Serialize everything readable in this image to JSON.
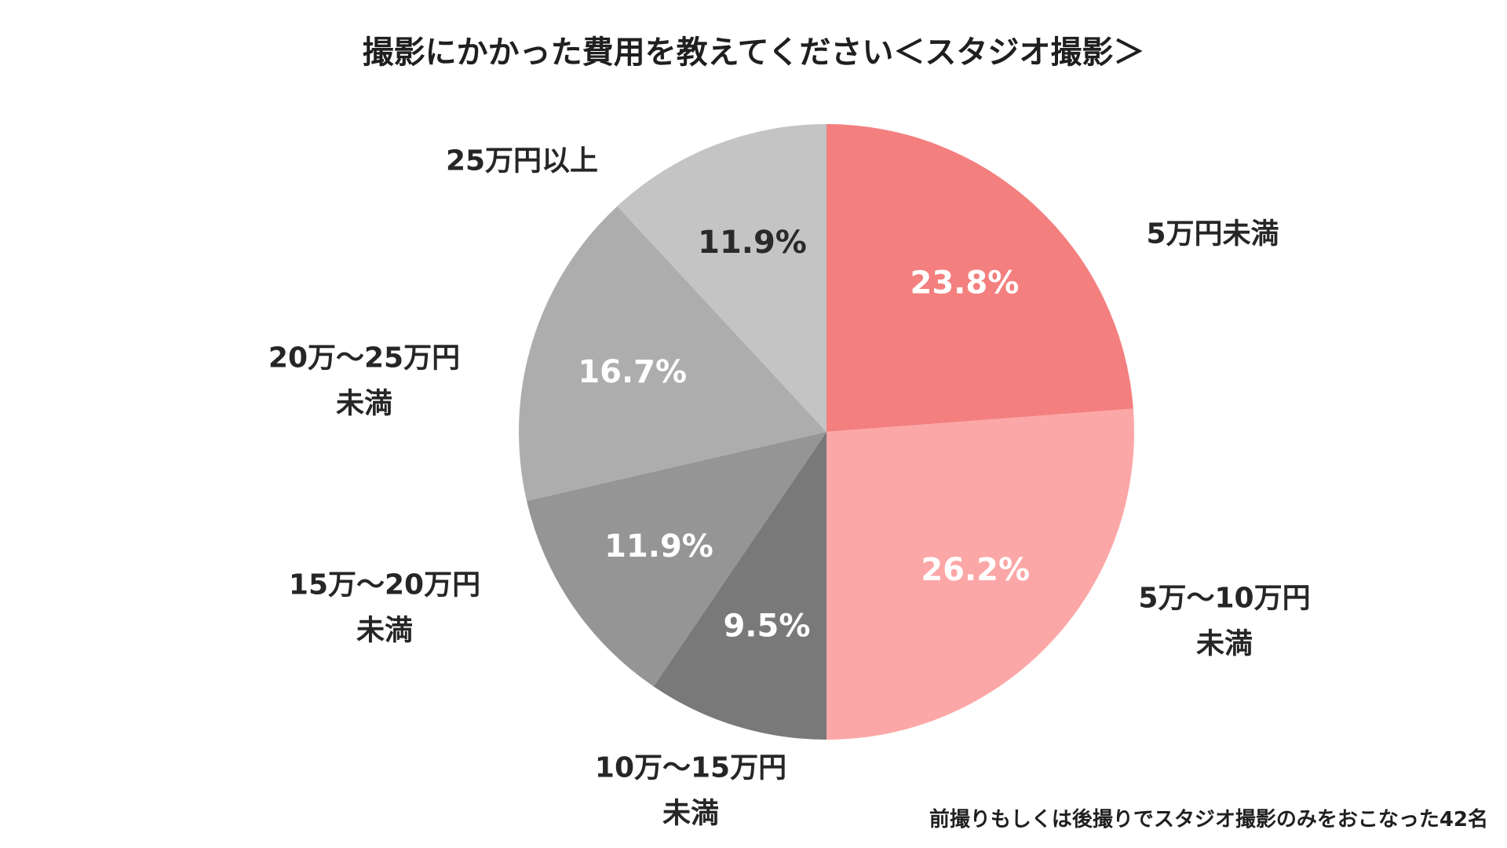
{
  "chart_data": {
    "type": "pie",
    "title": "撮影にかかった費用を教えてください＜スタジオ撮影＞",
    "categories": [
      "5万円未満",
      "5万～10万円未満",
      "10万～15万円未満",
      "15万～20万円未満",
      "20万～25万円未満",
      "25万円以上"
    ],
    "values": [
      23.8,
      26.2,
      9.5,
      11.9,
      16.7,
      11.9
    ],
    "value_labels": [
      "23.8%",
      "26.2%",
      "9.5%",
      "11.9%",
      "16.7%",
      "11.9%"
    ],
    "category_label_lines": [
      [
        "5万円未満"
      ],
      [
        "5万～10万円",
        "未満"
      ],
      [
        "10万～15万円",
        "未満"
      ],
      [
        "15万～20万円",
        "未満"
      ],
      [
        "20万～25万円",
        "未満"
      ],
      [
        "25万円以上"
      ]
    ],
    "colors": [
      "#f47f7f",
      "#fca7a7",
      "#7a7979",
      "#959595",
      "#adadad",
      "#c5c4c5"
    ],
    "value_label_colors": [
      "#ffffff",
      "#ffffff",
      "#ffffff",
      "#ffffff",
      "#ffffff",
      "#2a2a2a"
    ],
    "start_angle": "12 o'clock",
    "direction": "clockwise",
    "legend": "none"
  },
  "footnote": "前撮りもしくは後撮りでスタジオ撮影のみをおこなった42名"
}
